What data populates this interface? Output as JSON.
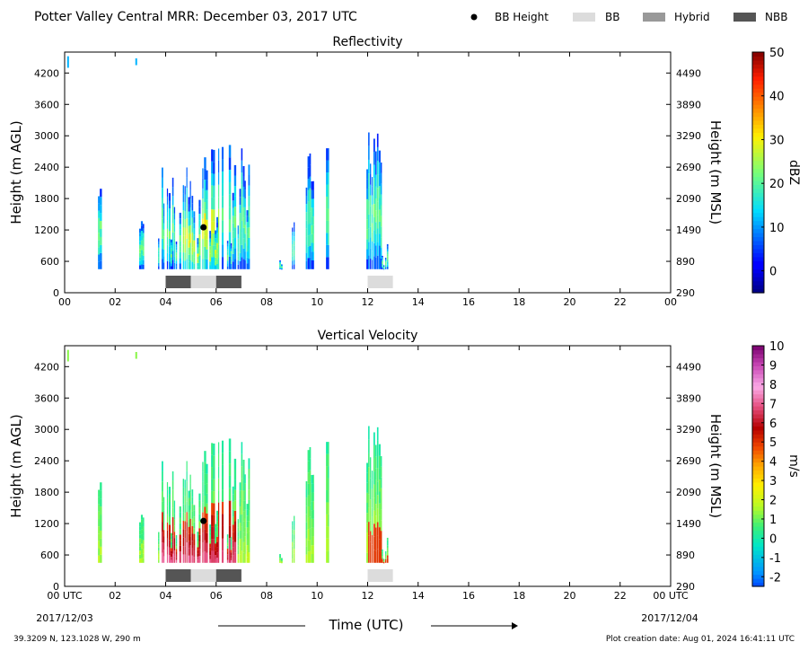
{
  "header": {
    "title": "Potter Valley Central MRR:  December 03, 2017 UTC",
    "legend": [
      {
        "label": "BB Height",
        "kind": "dot",
        "color": "#000000"
      },
      {
        "label": "BB",
        "kind": "box",
        "color": "#dcdcdc"
      },
      {
        "label": "Hybrid",
        "kind": "box",
        "color": "#999999"
      },
      {
        "label": "NBB",
        "kind": "box",
        "color": "#555555"
      }
    ]
  },
  "footer": {
    "location": "39.3209 N, 123.1028 W, 290 m",
    "creation": "Plot creation date: Aug 01, 2024 16:41:11 UTC",
    "xlabel": "Time (UTC)",
    "start_date": "2017/12/03",
    "end_date": "2017/12/04"
  },
  "chart_data": [
    {
      "type": "heatmap",
      "title": "Reflectivity",
      "ylabel": "Height (m AGL)",
      "y2label": "Height (m MSL)",
      "xlim": [
        0,
        24
      ],
      "ylim": [
        0,
        4600
      ],
      "x_ticks": [
        "00",
        "02",
        "04",
        "06",
        "08",
        "10",
        "12",
        "14",
        "16",
        "18",
        "20",
        "22",
        "00"
      ],
      "y_ticks": [
        "0",
        "600",
        "1200",
        "1800",
        "2400",
        "3000",
        "3600",
        "4200"
      ],
      "y2_ticks": [
        "290",
        "890",
        "1490",
        "2090",
        "2690",
        "3290",
        "3890",
        "4490"
      ],
      "colorbar": {
        "label": "dBZ",
        "range": [
          -5,
          50
        ],
        "ticks": [
          "0",
          "10",
          "20",
          "30",
          "40",
          "50"
        ]
      },
      "bb_height": [
        {
          "time": 5.5,
          "height": 1250
        }
      ],
      "bb_segments": [
        {
          "start": 4,
          "end": 5,
          "type": "NBB"
        },
        {
          "start": 5,
          "end": 6,
          "type": "BB"
        },
        {
          "start": 6,
          "end": 7,
          "type": "NBB"
        },
        {
          "start": 12,
          "end": 13,
          "type": "BB"
        }
      ]
    },
    {
      "type": "heatmap",
      "title": "Vertical Velocity",
      "ylabel": "Height (m AGL)",
      "y2label": "Height (m MSL)",
      "xlim": [
        0,
        24
      ],
      "ylim": [
        0,
        4600
      ],
      "x_ticks": [
        "00 UTC",
        "02",
        "04",
        "06",
        "08",
        "10",
        "12",
        "14",
        "16",
        "18",
        "20",
        "22",
        "00 UTC"
      ],
      "y_ticks": [
        "0",
        "600",
        "1200",
        "1800",
        "2400",
        "3000",
        "3600",
        "4200"
      ],
      "y2_ticks": [
        "290",
        "890",
        "1490",
        "2090",
        "2690",
        "3290",
        "3890",
        "4490"
      ],
      "colorbar": {
        "label": "m/s",
        "range": [
          -2.5,
          10
        ],
        "ticks": [
          "-2",
          "-1",
          "0",
          "1",
          "2",
          "3",
          "4",
          "5",
          "6",
          "7",
          "8",
          "9",
          "10"
        ]
      },
      "bb_height": [
        {
          "time": 5.5,
          "height": 1250
        }
      ],
      "bb_segments": [
        {
          "start": 4,
          "end": 5,
          "type": "NBB"
        },
        {
          "start": 5,
          "end": 6,
          "type": "BB"
        },
        {
          "start": 6,
          "end": 7,
          "type": "NBB"
        },
        {
          "start": 12,
          "end": 13,
          "type": "BB"
        }
      ]
    }
  ]
}
